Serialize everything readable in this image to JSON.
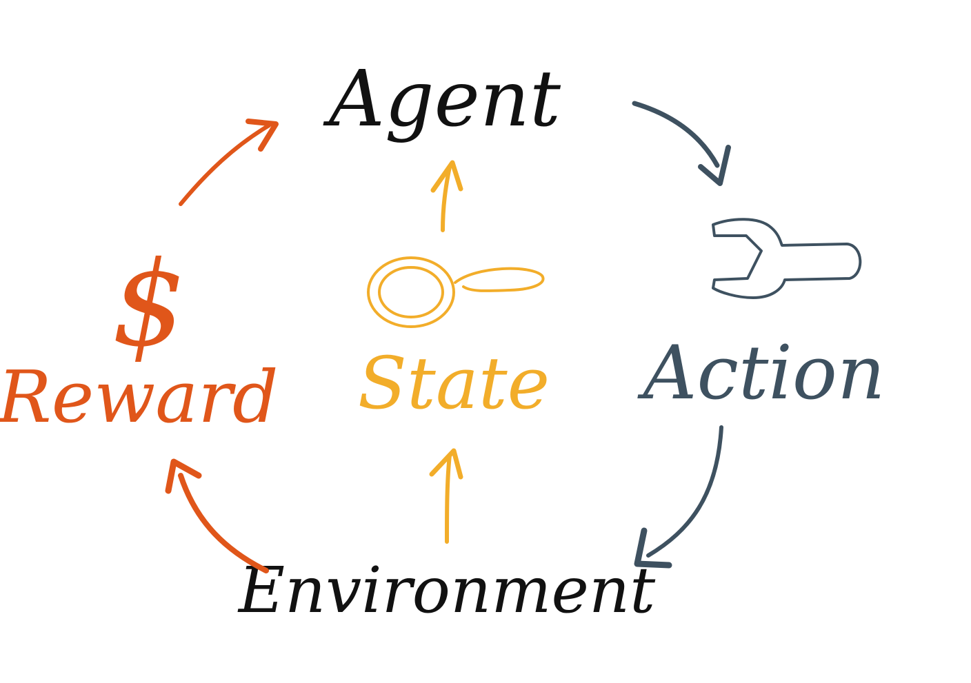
{
  "nodes": {
    "agent": {
      "label": "Agent",
      "color": "#111111"
    },
    "action": {
      "label": "Action",
      "color": "#3e5160"
    },
    "environment": {
      "label": "Environment",
      "color": "#111111"
    },
    "state": {
      "label": "State",
      "color": "#f2ad2a"
    },
    "reward": {
      "label": "Reward",
      "color": "#e0561a",
      "symbol": "$"
    }
  },
  "icons": {
    "action": "wrench-icon",
    "state": "magnifier-icon",
    "reward": "dollar-sign-icon"
  },
  "edges": [
    {
      "from": "agent",
      "to": "action",
      "color": "#3e5160"
    },
    {
      "from": "action",
      "to": "environment",
      "color": "#3e5160"
    },
    {
      "from": "environment",
      "to": "reward",
      "color": "#e0561a"
    },
    {
      "from": "reward",
      "to": "agent",
      "color": "#e0561a"
    },
    {
      "from": "environment",
      "to": "state",
      "color": "#f2ad2a"
    },
    {
      "from": "state",
      "to": "agent",
      "color": "#f2ad2a"
    }
  ]
}
